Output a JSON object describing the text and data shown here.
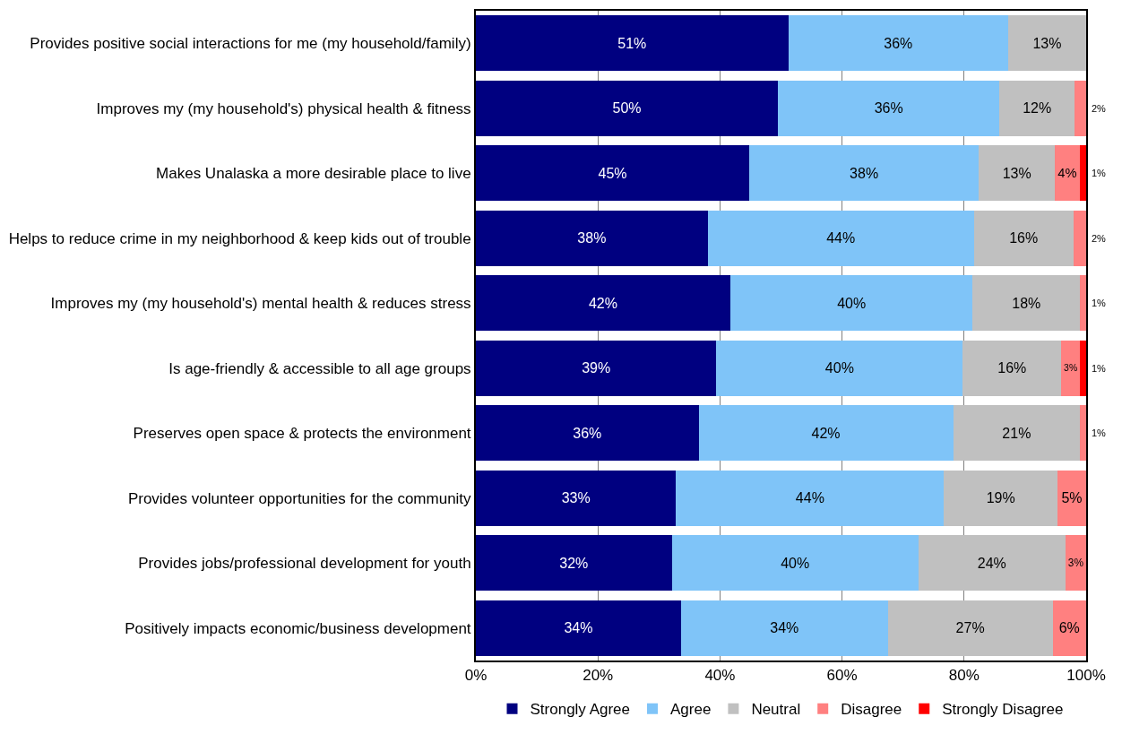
{
  "chart_data": {
    "type": "bar",
    "orientation": "horizontal",
    "stacked": true,
    "categories": [
      "Provides positive social interactions for me (my household/family)",
      "Improves my (my household's) physical health & fitness",
      "Makes Unalaska a more desirable place to live",
      "Helps to reduce crime in my neighborhood & keep kids out of trouble",
      "Improves my (my household's) mental health & reduces stress",
      "Is age-friendly & accessible to all age groups",
      "Preserves open space & protects the environment",
      "Provides volunteer opportunities for the community",
      "Provides jobs/professional development for youth",
      "Positively impacts economic/business development"
    ],
    "series": [
      {
        "name": "Strongly Agree",
        "color": "#000080",
        "values": [
          51.2,
          49.5,
          44.8,
          38.0,
          41.7,
          39.4,
          36.5,
          32.8,
          32.1,
          33.6
        ],
        "value_labels": [
          "51%",
          "50%",
          "45%",
          "38%",
          "42%",
          "39%",
          "36%",
          "33%",
          "32%",
          "34%"
        ]
      },
      {
        "name": "Agree",
        "color": "#7fc4f8",
        "values": [
          36.0,
          36.3,
          37.6,
          43.6,
          39.7,
          40.4,
          41.7,
          43.9,
          40.4,
          33.9
        ],
        "value_labels": [
          "36%",
          "36%",
          "38%",
          "44%",
          "40%",
          "40%",
          "42%",
          "44%",
          "40%",
          "34%"
        ]
      },
      {
        "name": "Neutral",
        "color": "#c0c0c0",
        "values": [
          12.8,
          12.3,
          12.5,
          16.3,
          17.6,
          16.1,
          20.8,
          18.6,
          24.1,
          27.0
        ],
        "value_labels": [
          "13%",
          "12%",
          "13%",
          "16%",
          "18%",
          "16%",
          "21%",
          "19%",
          "24%",
          "27%"
        ]
      },
      {
        "name": "Disagree",
        "color": "#ff8080",
        "values": [
          null,
          1.9,
          4.0,
          2.1,
          1.0,
          3.1,
          1.0,
          4.7,
          3.4,
          5.5
        ],
        "value_labels": [
          null,
          "2%",
          "4%",
          "2%",
          "1%",
          "3%",
          "1%",
          "5%",
          "3%",
          "6%"
        ]
      },
      {
        "name": "Strongly Disagree",
        "color": "#ff0000",
        "values": [
          null,
          null,
          1.1,
          null,
          null,
          1.0,
          null,
          null,
          null,
          null
        ],
        "value_labels": [
          null,
          null,
          "1%",
          null,
          null,
          "1%",
          null,
          null,
          null,
          null
        ]
      }
    ],
    "xlim": [
      0,
      100
    ],
    "xticks": [
      {
        "value": 0,
        "label": "0%"
      },
      {
        "value": 20,
        "label": "20%"
      },
      {
        "value": 40,
        "label": "40%"
      },
      {
        "value": 60,
        "label": "60%"
      },
      {
        "value": 80,
        "label": "80%"
      },
      {
        "value": 100,
        "label": "100%"
      }
    ],
    "grid": "x",
    "legend": "bottom"
  }
}
